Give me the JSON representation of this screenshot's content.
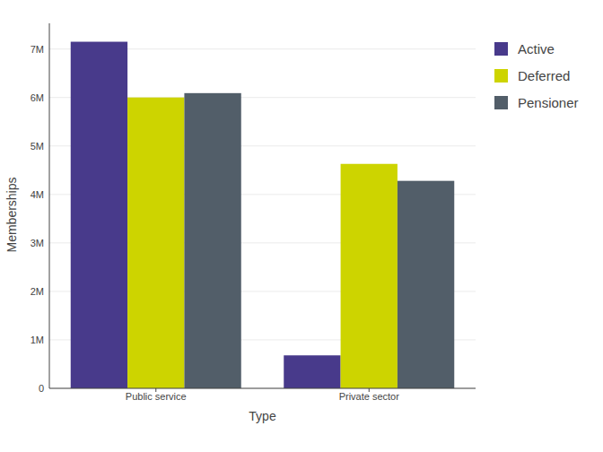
{
  "chart_data": {
    "type": "bar",
    "x_label": "Type",
    "y_label": "Memberships",
    "categories": [
      "Public service",
      "Private sector"
    ],
    "series": [
      {
        "name": "Active",
        "color": "#483a8b",
        "values": [
          7150000,
          680000
        ]
      },
      {
        "name": "Deferred",
        "color": "#cdd400",
        "values": [
          6000000,
          4630000
        ]
      },
      {
        "name": "Pensioner",
        "color": "#525e69",
        "values": [
          6090000,
          4280000
        ]
      }
    ],
    "ylim": [
      0,
      7530000
    ],
    "yticks": [
      0,
      {
        "value": 1000000,
        "label": "1M"
      },
      {
        "value": 2000000,
        "label": "2M"
      },
      {
        "value": 3000000,
        "label": "3M"
      },
      {
        "value": 4000000,
        "label": "4M"
      },
      {
        "value": 5000000,
        "label": "5M"
      },
      {
        "value": 6000000,
        "label": "6M"
      },
      {
        "value": 7000000,
        "label": "7M"
      }
    ],
    "grid": true,
    "legend": "right"
  }
}
